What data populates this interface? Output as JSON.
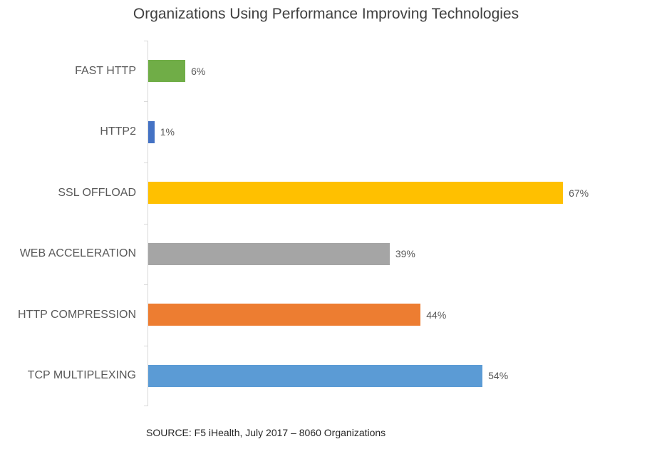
{
  "chart_data": {
    "type": "bar",
    "orientation": "horizontal",
    "title": "Organizations Using Performance Improving Technologies",
    "categories": [
      "FAST HTTP",
      "HTTP2",
      "SSL OFFLOAD",
      "WEB ACCELERATION",
      "HTTP COMPRESSION",
      "TCP MULTIPLEXING"
    ],
    "values": [
      6,
      1,
      67,
      39,
      44,
      54
    ],
    "value_labels": [
      "6%",
      "1%",
      "67%",
      "39%",
      "44%",
      "54%"
    ],
    "bar_colors": [
      "#70AD47",
      "#4472C4",
      "#FFC000",
      "#A5A5A5",
      "#ED7D31",
      "#5B9BD5"
    ],
    "xlim": [
      0,
      80
    ],
    "xlabel": "",
    "ylabel": "",
    "grid": false,
    "legend": false,
    "axis_color": "#D9D9D9",
    "title_color": "#404040",
    "label_color": "#595959",
    "source_note": "SOURCE: F5 iHealth, July 2017 – 8060 Organizations"
  }
}
